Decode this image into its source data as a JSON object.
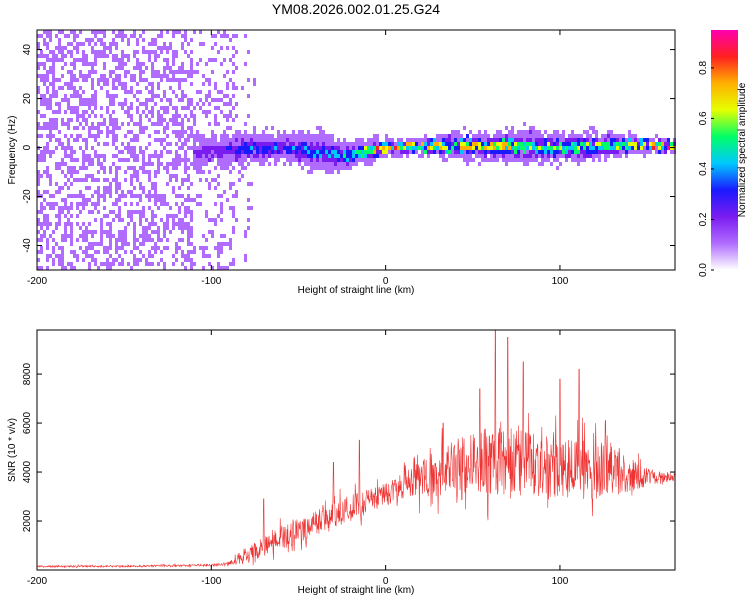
{
  "title": "YM08.2026.002.01.25.G24",
  "colors": {
    "snr_line": "#ee3333",
    "spectrogram_background": "#ffffff",
    "colormap": [
      "#ffffff",
      "#b06cff",
      "#7a1cf0",
      "#1a1aff",
      "#00c8ff",
      "#00ff66",
      "#e6ff00",
      "#ffb000",
      "#ff2020",
      "#ff00b0"
    ]
  },
  "chart_data": [
    {
      "type": "heatmap",
      "name": "spectrogram",
      "title": "YM08.2026.002.01.25.G24",
      "xlabel": "Height of straight line (km)",
      "ylabel": "Frequency (Hz)",
      "xlim": [
        -200,
        166
      ],
      "ylim": [
        -50,
        48
      ],
      "x_ticks": [
        -200,
        -100,
        0,
        100
      ],
      "x_tick_labels": [
        "-200",
        "-100",
        "0",
        "100"
      ],
      "y_ticks": [
        40,
        20,
        0,
        -20,
        -40
      ],
      "y_tick_labels": [
        "40",
        "20",
        "0",
        "-20",
        "-40"
      ],
      "colorbar": {
        "label": "Normalized spectral amplitude",
        "range": [
          0,
          0.95
        ],
        "ticks": [
          0.0,
          0.2,
          0.4,
          0.6,
          0.8
        ],
        "tick_labels": [
          "0.0",
          "0.2",
          "0.4",
          "0.6",
          "0.8"
        ]
      },
      "signal_band": {
        "x": [
          -110,
          -90,
          -80,
          -60,
          -40,
          -20,
          0,
          20,
          40,
          60,
          80,
          100,
          120,
          140,
          166
        ],
        "center_hz": [
          -2,
          -1,
          -0.5,
          0,
          -2,
          -3,
          0,
          0.5,
          0.5,
          0.5,
          0.5,
          0,
          0.5,
          1,
          0.5
        ],
        "half_width_hz": [
          6,
          7,
          7,
          6,
          8,
          6,
          4,
          3,
          5,
          6,
          7,
          6,
          6,
          4,
          3
        ],
        "peak_amplitude": [
          0.2,
          0.25,
          0.3,
          0.35,
          0.4,
          0.45,
          0.9,
          0.8,
          0.7,
          0.75,
          0.6,
          0.6,
          0.55,
          0.6,
          0.85
        ]
      },
      "noise_region": {
        "x_range": [
          -200,
          -75
        ],
        "typical_amplitude": 0.1
      }
    },
    {
      "type": "line",
      "name": "snr",
      "xlabel": "Height of straight line (km)",
      "ylabel": "SNR (10 * v/v)",
      "xlim": [
        -200,
        166
      ],
      "ylim": [
        0,
        9800
      ],
      "x_ticks": [
        -200,
        -100,
        0,
        100
      ],
      "x_tick_labels": [
        "-200",
        "-100",
        "0",
        "100"
      ],
      "y_ticks": [
        2000,
        4000,
        6000,
        8000
      ],
      "y_tick_labels": [
        "2000",
        "4000",
        "6000",
        "8000"
      ],
      "series": [
        {
          "name": "SNR",
          "x": [
            -200,
            -150,
            -100,
            -90,
            -80,
            -70,
            -60,
            -50,
            -40,
            -30,
            -20,
            -10,
            0,
            10,
            20,
            30,
            40,
            50,
            60,
            70,
            80,
            90,
            100,
            110,
            120,
            130,
            140,
            150,
            160,
            166
          ],
          "values": [
            150,
            150,
            200,
            250,
            600,
            1000,
            1300,
            1600,
            1900,
            2200,
            2500,
            2800,
            3100,
            3400,
            3700,
            4000,
            4300,
            4400,
            4500,
            4400,
            4300,
            4200,
            4100,
            4000,
            4100,
            4000,
            3900,
            3800,
            3800,
            3800
          ],
          "spread": [
            60,
            60,
            80,
            150,
            600,
            800,
            900,
            900,
            900,
            1100,
            1000,
            900,
            800,
            1000,
            1400,
            1800,
            1900,
            2100,
            2600,
            2600,
            2600,
            2500,
            2300,
            2300,
            2300,
            1900,
            1300,
            700,
            400,
            300
          ],
          "peaks": [
            {
              "x": -70,
              "value": 2900
            },
            {
              "x": -30,
              "value": 4400
            },
            {
              "x": -15,
              "value": 5300
            },
            {
              "x": 33,
              "value": 6000
            },
            {
              "x": 54,
              "value": 7400
            },
            {
              "x": 63,
              "value": 9800
            },
            {
              "x": 70,
              "value": 9500
            },
            {
              "x": 79,
              "value": 8500
            },
            {
              "x": 100,
              "value": 7800
            },
            {
              "x": 111,
              "value": 8200
            },
            {
              "x": 126,
              "value": 6100
            }
          ]
        }
      ]
    }
  ]
}
